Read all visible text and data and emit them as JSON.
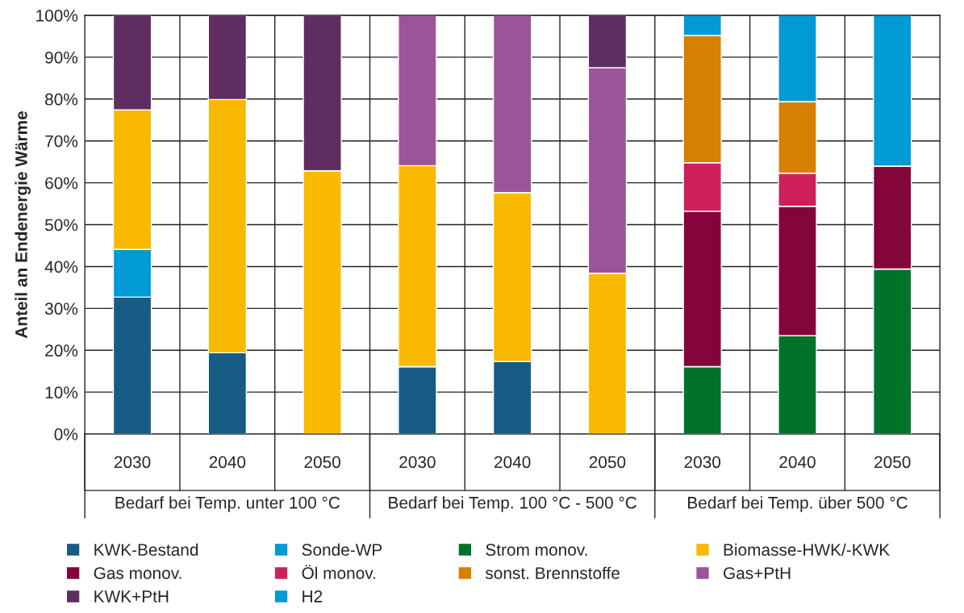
{
  "chart_data": {
    "type": "bar",
    "stacked": true,
    "ylabel": "Anteil an Endenergie Wärme",
    "categories": [
      "2030",
      "2040",
      "2050",
      "2030",
      "2040",
      "2050",
      "2030",
      "2040",
      "2050"
    ],
    "annotations": [
      "Bedarf bei Temp. unter 100 °C",
      "Bedarf bei Temp. 100 °C - 500 °C",
      "Bedarf bei Temp. über 500 °C"
    ],
    "ylim": [
      0,
      100
    ],
    "yticks": [
      {
        "value": 0,
        "label": "0%"
      },
      {
        "value": 10,
        "label": "10%"
      },
      {
        "value": 20,
        "label": "20%"
      },
      {
        "value": 30,
        "label": "30%"
      },
      {
        "value": 40,
        "label": "40%"
      },
      {
        "value": 50,
        "label": "50%"
      },
      {
        "value": 60,
        "label": "60%"
      },
      {
        "value": 70,
        "label": "70%"
      },
      {
        "value": 80,
        "label": "80%"
      },
      {
        "value": 90,
        "label": "90%"
      },
      {
        "value": 100,
        "label": "100%"
      }
    ],
    "grid": true,
    "legend": "bottom",
    "series": [
      {
        "name": "KWK-Bestand",
        "color": "#165c84",
        "values": [
          32.7,
          19.4,
          null,
          16.1,
          17.3,
          null,
          null,
          null,
          null
        ]
      },
      {
        "name": "Sonde-WP",
        "color": "#009ad4",
        "values": [
          11.4,
          null,
          null,
          null,
          null,
          null,
          null,
          null,
          null
        ]
      },
      {
        "name": "Strom monov.",
        "color": "#00722a",
        "values": [
          null,
          null,
          null,
          null,
          null,
          null,
          16.1,
          23.5,
          39.4
        ]
      },
      {
        "name": "Biomasse-HWK/-KWK",
        "color": "#f9b900",
        "values": [
          33.3,
          60.5,
          62.9,
          48.0,
          40.4,
          38.4,
          null,
          null,
          null
        ]
      },
      {
        "name": "Gas monov.",
        "color": "#83053b",
        "values": [
          null,
          null,
          null,
          null,
          null,
          null,
          37.1,
          30.9,
          24.6
        ]
      },
      {
        "name": "Öl monov.",
        "color": "#cd205d",
        "values": [
          null,
          null,
          null,
          null,
          null,
          null,
          11.6,
          7.9,
          null
        ]
      },
      {
        "name": "sonst. Brennstoffe",
        "color": "#d68000",
        "values": [
          null,
          null,
          null,
          null,
          null,
          null,
          30.4,
          17.1,
          null
        ]
      },
      {
        "name": "Gas+PtH",
        "color": "#9b5499",
        "values": [
          null,
          null,
          null,
          35.9,
          42.3,
          49.1,
          null,
          null,
          null
        ]
      },
      {
        "name": "KWK+PtH",
        "color": "#5f2d5f",
        "values": [
          22.6,
          20.1,
          37.1,
          null,
          null,
          12.5,
          null,
          null,
          null
        ]
      },
      {
        "name": "H2",
        "color": "#009ad4",
        "values": [
          null,
          null,
          null,
          null,
          null,
          null,
          4.8,
          20.6,
          36.0
        ]
      }
    ]
  }
}
